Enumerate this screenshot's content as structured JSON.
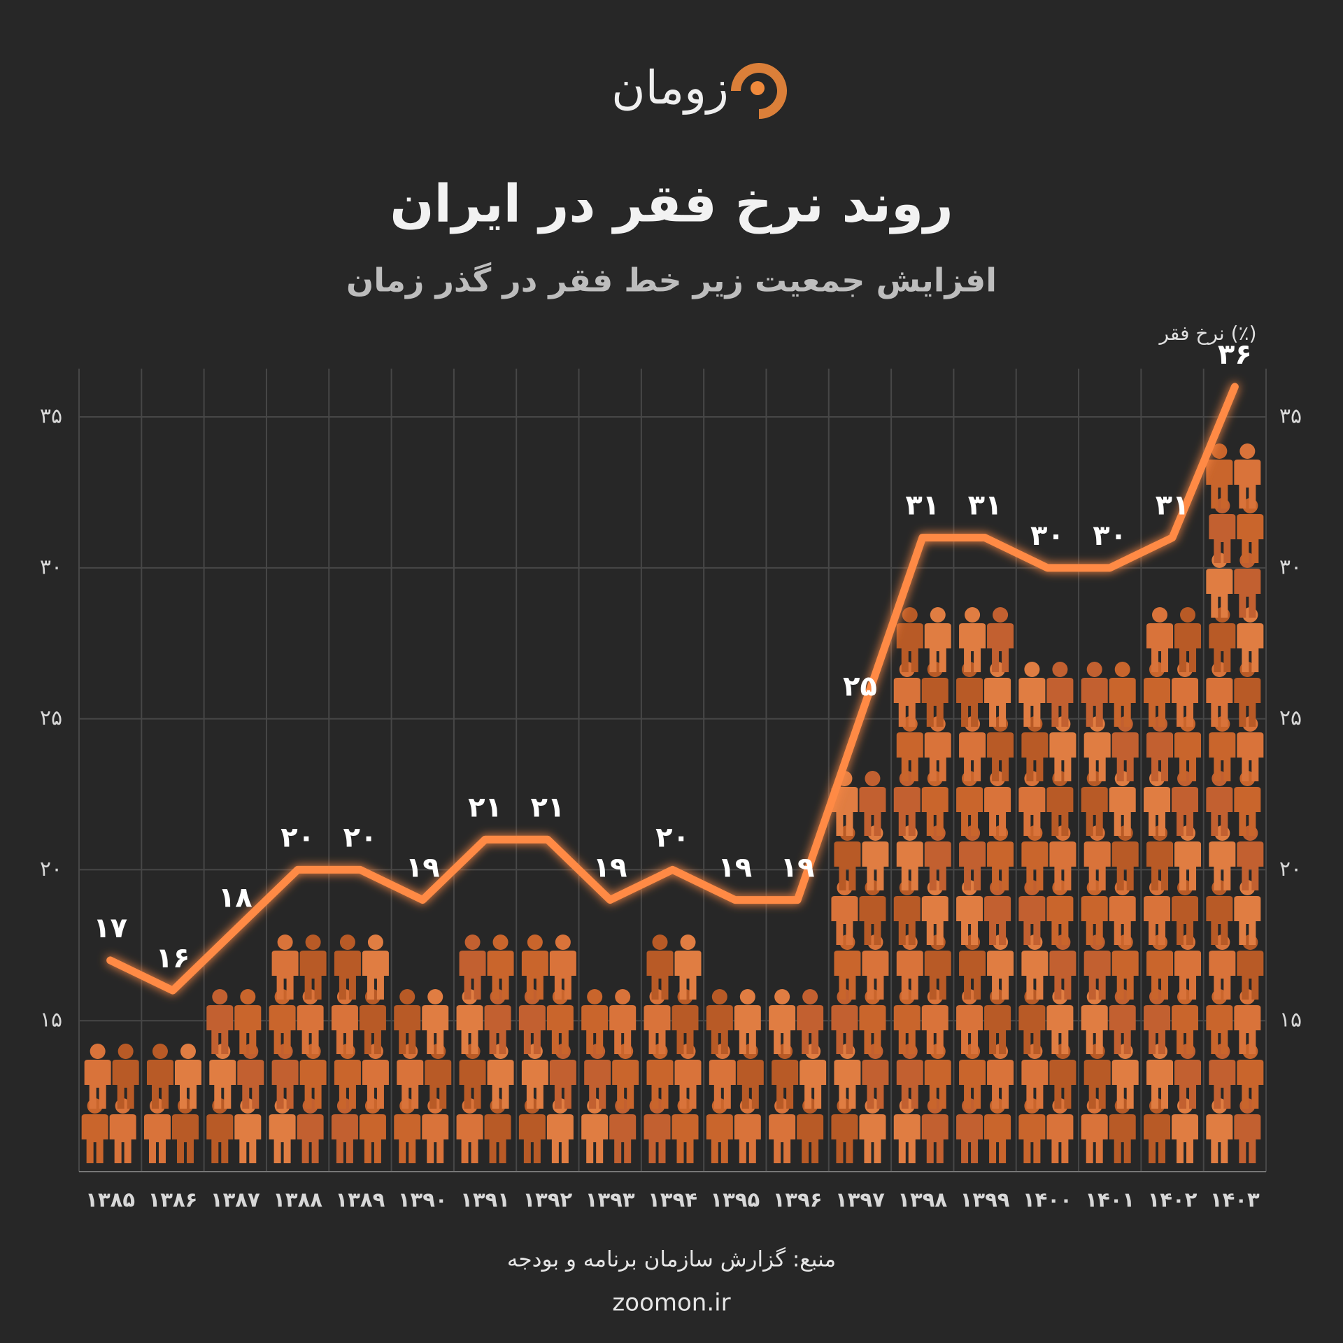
{
  "chart_data": {
    "type": "line",
    "brand": "زومان",
    "title": "روند نرخ فقر در ایران",
    "subtitle": "افزایش جمعیت زیر خط فقر در گذر زمان",
    "y_label": "نرخ فقر (٪)",
    "categories": [
      "۱۳۸۵",
      "۱۳۸۶",
      "۱۳۸۷",
      "۱۳۸۸",
      "۱۳۸۹",
      "۱۳۹۰",
      "۱۳۹۱",
      "۱۳۹۲",
      "۱۳۹۳",
      "۱۳۹۴",
      "۱۳۹۵",
      "۱۳۹۶",
      "۱۳۹۷",
      "۱۳۹۸",
      "۱۳۹۹",
      "۱۴۰۰",
      "۱۴۰۱",
      "۱۴۰۲",
      "۱۴۰۳"
    ],
    "values": [
      17,
      16,
      18,
      20,
      20,
      19,
      21,
      21,
      19,
      20,
      19,
      19,
      25,
      31,
      31,
      30,
      30,
      31,
      36
    ],
    "value_labels": [
      "۱۷",
      "۱۶",
      "۱۸",
      "۲۰",
      "۲۰",
      "۱۹",
      "۲۱",
      "۲۱",
      "۱۹",
      "۲۰",
      "۱۹",
      "۱۹",
      "۲۵",
      "۳۱",
      "۳۱",
      "۳۰",
      "۳۰",
      "۳۱",
      "۳۶"
    ],
    "color": "#ff8a45",
    "ylim": [
      10,
      36.6
    ],
    "yticks": [
      {
        "value": 15,
        "label": "۱۵"
      },
      {
        "value": 20,
        "label": "۲۰"
      },
      {
        "value": 25,
        "label": "۲۵"
      },
      {
        "value": 30,
        "label": "۳۰"
      },
      {
        "value": 35,
        "label": "۳۵"
      }
    ],
    "grid": true,
    "source": "منبع: گزارش سازمان برنامه و بودجه",
    "website": "zoomon.ir"
  }
}
